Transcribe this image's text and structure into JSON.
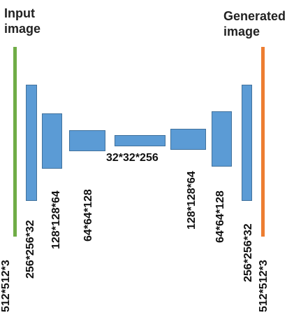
{
  "headings": {
    "input": [
      "Input",
      "image"
    ],
    "generated": [
      "Generated",
      "image"
    ]
  },
  "layers": [
    {
      "shape": "512*512*3",
      "role": "input"
    },
    {
      "shape": "256*256*32",
      "role": "encoder"
    },
    {
      "shape": "128*128*64",
      "role": "encoder"
    },
    {
      "shape": "64*64*128",
      "role": "encoder"
    },
    {
      "shape": "32*32*256",
      "role": "bottleneck"
    },
    {
      "shape": "128*128*64",
      "role": "decoder"
    },
    {
      "shape": "64*64*128",
      "role": "decoder"
    },
    {
      "shape": "256*256*32",
      "role": "decoder"
    },
    {
      "shape": "512*512*3",
      "role": "output"
    }
  ],
  "colors": {
    "input": "#70ad47",
    "block": "#5b9bd5",
    "block_border": "#41719c",
    "output": "#ed7d31",
    "text": "#111111"
  }
}
